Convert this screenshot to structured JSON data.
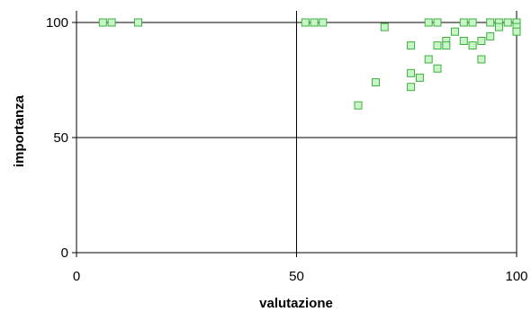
{
  "chart_data": {
    "type": "scatter",
    "title": "",
    "xlabel": "valutazione",
    "ylabel": "importanza",
    "xlim": [
      0,
      100
    ],
    "ylim": [
      0,
      100
    ],
    "xticks": [
      0,
      50,
      100
    ],
    "yticks": [
      0,
      50,
      100
    ],
    "grid": true,
    "legend": "none",
    "marker": "square",
    "colors": {
      "marker_fill": "#c8f5c8",
      "marker_stroke": "#3fae3f",
      "grid": "#000000"
    },
    "x": [
      6,
      8,
      14,
      52,
      54,
      56,
      80,
      82,
      88,
      90,
      94,
      96,
      98,
      100,
      100,
      70,
      96,
      100,
      92,
      94,
      86,
      84,
      82,
      76,
      88,
      90,
      84,
      92,
      80,
      82,
      76,
      78,
      76,
      68,
      64
    ],
    "y": [
      100,
      100,
      100,
      100,
      100,
      100,
      100,
      100,
      100,
      100,
      100,
      100,
      100,
      100,
      98,
      98,
      98,
      96,
      92,
      94,
      96,
      92,
      90,
      90,
      92,
      90,
      90,
      84,
      84,
      80,
      78,
      76,
      72,
      74,
      64
    ]
  }
}
